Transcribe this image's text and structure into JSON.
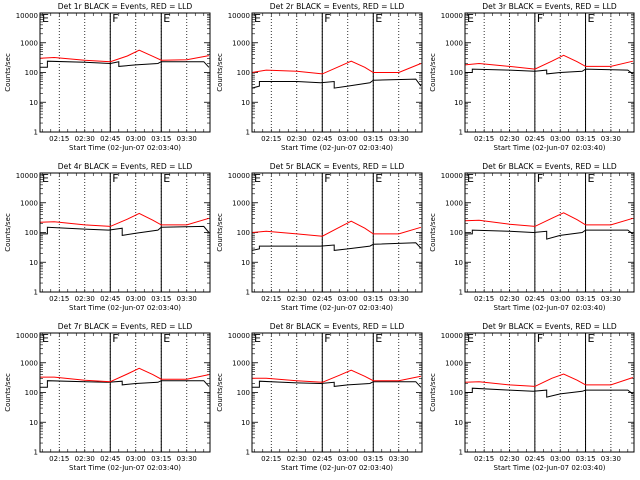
{
  "colors": {
    "events": "#000000",
    "lld": "#ff0000",
    "axes": "#000000"
  },
  "chart_data": [
    {
      "type": "line",
      "title": "Det 1r BLACK = Events, RED = LLD",
      "ylabel": "Counts/sec",
      "xlabel": "Start Time (02-Jun-07 02:03:40)",
      "yscale": "log",
      "ylim": [
        1,
        10000
      ],
      "yticks": [
        "1",
        "10",
        "100",
        "1000",
        "10000"
      ],
      "xlim": [
        "02:03:40",
        "03:43:40"
      ],
      "xticks": [
        "02:15",
        "02:30",
        "02:45",
        "03:00",
        "03:15",
        "03:30"
      ],
      "markers": [
        {
          "label": "E",
          "time": "02:03:40"
        },
        {
          "label": "F",
          "time": "02:45"
        },
        {
          "label": "E",
          "time": "03:15"
        }
      ],
      "series": [
        {
          "name": "Events",
          "color": "#000000",
          "x": [
            "02:03:40",
            "02:08",
            "02:08",
            "02:30",
            "02:45",
            "02:50",
            "02:50",
            "03:00",
            "03:13",
            "03:15",
            "03:15",
            "03:40",
            "03:43"
          ],
          "y": [
            150,
            150,
            240,
            220,
            200,
            230,
            160,
            180,
            200,
            230,
            230,
            230,
            150
          ]
        },
        {
          "name": "LLD",
          "color": "#ff0000",
          "x": [
            "02:03:40",
            "02:12",
            "02:30",
            "02:45",
            "02:55",
            "03:02",
            "03:10",
            "03:15",
            "03:30",
            "03:43"
          ],
          "y": [
            300,
            320,
            260,
            230,
            360,
            560,
            350,
            260,
            270,
            370
          ]
        }
      ]
    },
    {
      "type": "line",
      "title": "Det 2r BLACK = Events, RED = LLD",
      "ylabel": "Counts/sec",
      "xlabel": "Start Time (02-Jun-07 02:03:40)",
      "yscale": "log",
      "ylim": [
        1,
        10000
      ],
      "yticks": [
        "1",
        "10",
        "100",
        "1000",
        "10000"
      ],
      "xlim": [
        "02:03:40",
        "03:43:40"
      ],
      "xticks": [
        "02:15",
        "02:30",
        "02:45",
        "03:00",
        "03:15",
        "03:30"
      ],
      "markers": [
        {
          "label": "E",
          "time": "02:03:40"
        },
        {
          "label": "F",
          "time": "02:45"
        },
        {
          "label": "E",
          "time": "03:15"
        }
      ],
      "series": [
        {
          "name": "Events",
          "color": "#000000",
          "x": [
            "02:03:40",
            "02:08",
            "02:08",
            "02:30",
            "02:44",
            "02:52",
            "02:52",
            "03:00",
            "03:13",
            "03:15",
            "03:15",
            "03:40",
            "03:43"
          ],
          "y": [
            30,
            35,
            50,
            50,
            45,
            50,
            30,
            35,
            45,
            55,
            55,
            60,
            35
          ]
        },
        {
          "name": "LLD",
          "color": "#ff0000",
          "x": [
            "02:03:40",
            "02:12",
            "02:30",
            "02:45",
            "02:55",
            "03:02",
            "03:10",
            "03:15",
            "03:30",
            "03:43"
          ],
          "y": [
            100,
            120,
            110,
            90,
            160,
            240,
            150,
            100,
            100,
            200
          ]
        }
      ]
    },
    {
      "type": "line",
      "title": "Det 3r BLACK = Events, RED = LLD",
      "ylabel": "Counts/sec",
      "xlabel": "Start Time (02-Jun-07 02:03:40)",
      "yscale": "log",
      "ylim": [
        1,
        10000
      ],
      "yticks": [
        "1",
        "10",
        "100",
        "1000",
        "10000"
      ],
      "xlim": [
        "02:03:40",
        "03:43:40"
      ],
      "xticks": [
        "02:15",
        "02:30",
        "02:45",
        "03:00",
        "03:15",
        "03:30"
      ],
      "markers": [
        {
          "label": "E",
          "time": "02:03:40"
        },
        {
          "label": "F",
          "time": "02:45"
        },
        {
          "label": "E",
          "time": "03:15"
        }
      ],
      "series": [
        {
          "name": "Events",
          "color": "#000000",
          "x": [
            "02:03:40",
            "02:08",
            "02:08",
            "02:30",
            "02:45",
            "02:52",
            "02:52",
            "03:00",
            "03:13",
            "03:15",
            "03:15",
            "03:40",
            "03:43"
          ],
          "y": [
            100,
            100,
            130,
            120,
            110,
            120,
            90,
            100,
            110,
            130,
            130,
            120,
            90
          ]
        },
        {
          "name": "LLD",
          "color": "#ff0000",
          "x": [
            "02:03:40",
            "02:12",
            "02:30",
            "02:45",
            "02:55",
            "03:02",
            "03:10",
            "03:15",
            "03:30",
            "03:43"
          ],
          "y": [
            180,
            200,
            160,
            130,
            240,
            380,
            230,
            160,
            160,
            240
          ]
        }
      ]
    },
    {
      "type": "line",
      "title": "Det 4r BLACK = Events, RED = LLD",
      "ylabel": "Counts/sec",
      "xlabel": "Start Time (02-Jun-07 02:03:40)",
      "yscale": "log",
      "ylim": [
        1,
        10000
      ],
      "yticks": [
        "1",
        "10",
        "100",
        "1000",
        "10000"
      ],
      "xlim": [
        "02:03:40",
        "03:43:40"
      ],
      "xticks": [
        "02:15",
        "02:30",
        "02:45",
        "03:00",
        "03:15",
        "03:30"
      ],
      "markers": [
        {
          "label": "E",
          "time": "02:03:40"
        },
        {
          "label": "F",
          "time": "02:45"
        },
        {
          "label": "E",
          "time": "03:15"
        }
      ],
      "series": [
        {
          "name": "Events",
          "color": "#000000",
          "x": [
            "02:03:40",
            "02:08",
            "02:08",
            "02:30",
            "02:44",
            "02:52",
            "02:52",
            "03:00",
            "03:13",
            "03:15",
            "03:15",
            "03:40",
            "03:43"
          ],
          "y": [
            90,
            90,
            150,
            130,
            120,
            140,
            80,
            95,
            120,
            150,
            150,
            160,
            100
          ]
        },
        {
          "name": "LLD",
          "color": "#ff0000",
          "x": [
            "02:03:40",
            "02:12",
            "02:30",
            "02:45",
            "02:55",
            "03:02",
            "03:10",
            "03:15",
            "03:30",
            "03:43"
          ],
          "y": [
            220,
            230,
            180,
            160,
            280,
            440,
            260,
            180,
            180,
            300
          ]
        }
      ]
    },
    {
      "type": "line",
      "title": "Det 5r BLACK = Events, RED = LLD",
      "ylabel": "Counts/sec",
      "xlabel": "Start Time (02-Jun-07 02:03:40)",
      "yscale": "log",
      "ylim": [
        1,
        10000
      ],
      "yticks": [
        "1",
        "10",
        "100",
        "1000",
        "10000"
      ],
      "xlim": [
        "02:03:40",
        "03:43:40"
      ],
      "xticks": [
        "02:15",
        "02:30",
        "02:45",
        "03:00",
        "03:15",
        "03:30"
      ],
      "markers": [
        {
          "label": "E",
          "time": "02:03:40"
        },
        {
          "label": "F",
          "time": "02:45"
        },
        {
          "label": "E",
          "time": "03:15"
        }
      ],
      "series": [
        {
          "name": "Events",
          "color": "#000000",
          "x": [
            "02:03:40",
            "02:08",
            "02:08",
            "02:30",
            "02:44",
            "02:52",
            "02:52",
            "03:00",
            "03:13",
            "03:15",
            "03:15",
            "03:40",
            "03:43"
          ],
          "y": [
            25,
            28,
            35,
            35,
            35,
            38,
            25,
            28,
            35,
            40,
            40,
            45,
            30
          ]
        },
        {
          "name": "LLD",
          "color": "#ff0000",
          "x": [
            "02:03:40",
            "02:12",
            "02:30",
            "02:45",
            "02:55",
            "03:02",
            "03:10",
            "03:15",
            "03:30",
            "03:43"
          ],
          "y": [
            100,
            110,
            90,
            75,
            150,
            240,
            140,
            90,
            90,
            150
          ]
        }
      ]
    },
    {
      "type": "line",
      "title": "Det 6r BLACK = Events, RED = LLD",
      "ylabel": "Counts/sec",
      "xlabel": "Start Time (02-Jun-07 02:03:40)",
      "yscale": "log",
      "ylim": [
        1,
        10000
      ],
      "yticks": [
        "1",
        "10",
        "100",
        "1000",
        "10000"
      ],
      "xlim": [
        "02:03:40",
        "03:43:40"
      ],
      "xticks": [
        "02:15",
        "02:30",
        "02:45",
        "03:00",
        "03:15",
        "03:30"
      ],
      "markers": [
        {
          "label": "E",
          "time": "02:03:40"
        },
        {
          "label": "F",
          "time": "02:45"
        },
        {
          "label": "E",
          "time": "03:15"
        }
      ],
      "series": [
        {
          "name": "Events",
          "color": "#000000",
          "x": [
            "02:03:40",
            "02:08",
            "02:08",
            "02:30",
            "02:44",
            "02:52",
            "02:52",
            "03:00",
            "03:13",
            "03:15",
            "03:15",
            "03:40",
            "03:43"
          ],
          "y": [
            90,
            90,
            120,
            110,
            100,
            110,
            60,
            80,
            100,
            120,
            120,
            120,
            90
          ]
        },
        {
          "name": "LLD",
          "color": "#ff0000",
          "x": [
            "02:03:40",
            "02:12",
            "02:30",
            "02:45",
            "02:55",
            "03:02",
            "03:10",
            "03:15",
            "03:30",
            "03:43"
          ],
          "y": [
            250,
            260,
            190,
            160,
            300,
            460,
            270,
            180,
            180,
            300
          ]
        }
      ]
    },
    {
      "type": "line",
      "title": "Det 7r BLACK = Events, RED = LLD",
      "ylabel": "Counts/sec",
      "xlabel": "Start Time (02-Jun-07 02:03:40)",
      "yscale": "log",
      "ylim": [
        1,
        10000
      ],
      "yticks": [
        "1",
        "10",
        "100",
        "1000",
        "10000"
      ],
      "xlim": [
        "02:03:40",
        "03:43:40"
      ],
      "xticks": [
        "02:15",
        "02:30",
        "02:45",
        "03:00",
        "03:15",
        "03:30"
      ],
      "markers": [
        {
          "label": "E",
          "time": "02:03:40"
        },
        {
          "label": "F",
          "time": "02:45"
        },
        {
          "label": "E",
          "time": "03:15"
        }
      ],
      "series": [
        {
          "name": "Events",
          "color": "#000000",
          "x": [
            "02:03:40",
            "02:08",
            "02:08",
            "02:30",
            "02:44",
            "02:52",
            "02:52",
            "03:00",
            "03:13",
            "03:15",
            "03:15",
            "03:40",
            "03:43"
          ],
          "y": [
            150,
            150,
            250,
            230,
            220,
            240,
            180,
            200,
            220,
            250,
            250,
            250,
            160
          ]
        },
        {
          "name": "LLD",
          "color": "#ff0000",
          "x": [
            "02:03:40",
            "02:12",
            "02:30",
            "02:45",
            "02:55",
            "03:02",
            "03:10",
            "03:15",
            "03:30",
            "03:43"
          ],
          "y": [
            330,
            330,
            260,
            230,
            420,
            650,
            400,
            280,
            280,
            400
          ]
        }
      ]
    },
    {
      "type": "line",
      "title": "Det 8r BLACK = Events, RED = LLD",
      "ylabel": "Counts/sec",
      "xlabel": "Start Time (02-Jun-07 02:03:40)",
      "yscale": "log",
      "ylim": [
        1,
        10000
      ],
      "yticks": [
        "1",
        "10",
        "100",
        "1000",
        "10000"
      ],
      "xlim": [
        "02:03:40",
        "03:43:40"
      ],
      "xticks": [
        "02:15",
        "02:30",
        "02:45",
        "03:00",
        "03:15",
        "03:30"
      ],
      "markers": [
        {
          "label": "E",
          "time": "02:03:40"
        },
        {
          "label": "F",
          "time": "02:45"
        },
        {
          "label": "E",
          "time": "03:15"
        }
      ],
      "series": [
        {
          "name": "Events",
          "color": "#000000",
          "x": [
            "02:03:40",
            "02:08",
            "02:08",
            "02:30",
            "02:44",
            "02:52",
            "02:52",
            "03:00",
            "03:13",
            "03:15",
            "03:15",
            "03:40",
            "03:43"
          ],
          "y": [
            150,
            150,
            240,
            210,
            200,
            220,
            160,
            180,
            200,
            230,
            230,
            230,
            150
          ]
        },
        {
          "name": "LLD",
          "color": "#ff0000",
          "x": [
            "02:03:40",
            "02:12",
            "02:30",
            "02:45",
            "02:55",
            "03:02",
            "03:10",
            "03:15",
            "03:30",
            "03:43"
          ],
          "y": [
            300,
            300,
            250,
            220,
            380,
            560,
            350,
            250,
            250,
            350
          ]
        }
      ]
    },
    {
      "type": "line",
      "title": "Det 9r BLACK = Events, RED = LLD",
      "ylabel": "Counts/sec",
      "xlabel": "Start Time (02-Jun-07 02:03:40)",
      "yscale": "log",
      "ylim": [
        1,
        10000
      ],
      "yticks": [
        "1",
        "10",
        "100",
        "1000",
        "10000"
      ],
      "xlim": [
        "02:03:40",
        "03:43:40"
      ],
      "xticks": [
        "02:15",
        "02:30",
        "02:45",
        "03:00",
        "03:15",
        "03:30"
      ],
      "markers": [
        {
          "label": "E",
          "time": "02:03:40"
        },
        {
          "label": "F",
          "time": "02:45"
        },
        {
          "label": "E",
          "time": "03:15"
        }
      ],
      "series": [
        {
          "name": "Events",
          "color": "#000000",
          "x": [
            "02:03:40",
            "02:08",
            "02:08",
            "02:30",
            "02:44",
            "02:52",
            "02:52",
            "03:00",
            "03:13",
            "03:15",
            "03:15",
            "03:40",
            "03:43"
          ],
          "y": [
            100,
            100,
            140,
            120,
            110,
            120,
            70,
            90,
            110,
            120,
            120,
            120,
            90
          ]
        },
        {
          "name": "LLD",
          "color": "#ff0000",
          "x": [
            "02:03:40",
            "02:12",
            "02:30",
            "02:45",
            "02:55",
            "03:02",
            "03:10",
            "03:15",
            "03:30",
            "03:43"
          ],
          "y": [
            220,
            230,
            180,
            160,
            300,
            420,
            260,
            180,
            180,
            320
          ]
        }
      ]
    }
  ]
}
